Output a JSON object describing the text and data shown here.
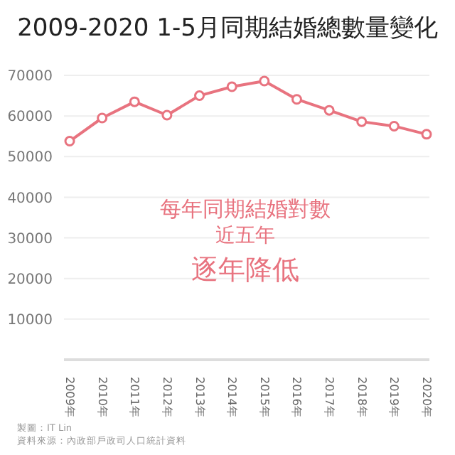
{
  "chart_data": {
    "type": "line",
    "title": "2009-2020 1-5月同期結婚總數量變化",
    "categories": [
      "2009年",
      "2010年",
      "2011年",
      "2012年",
      "2013年",
      "2014年",
      "2015年",
      "2016年",
      "2017年",
      "2018年",
      "2019年",
      "2020年"
    ],
    "series": [
      {
        "color": "#e8737f",
        "values": [
          53800,
          59500,
          63500,
          60200,
          65000,
          67200,
          68600,
          64100,
          61400,
          58600,
          57500,
          55500
        ]
      }
    ],
    "ylim": [
      0,
      70000
    ],
    "yticks": [
      10000,
      20000,
      30000,
      40000,
      50000,
      60000,
      70000
    ],
    "grid": "y",
    "marker": "circle",
    "legend": false,
    "annotations": [
      "每年同期結婚對數",
      "近五年",
      "逐年降低",
      "製圖：IT Lin",
      "資料來源：內政部戶政司人口統計資料"
    ]
  }
}
